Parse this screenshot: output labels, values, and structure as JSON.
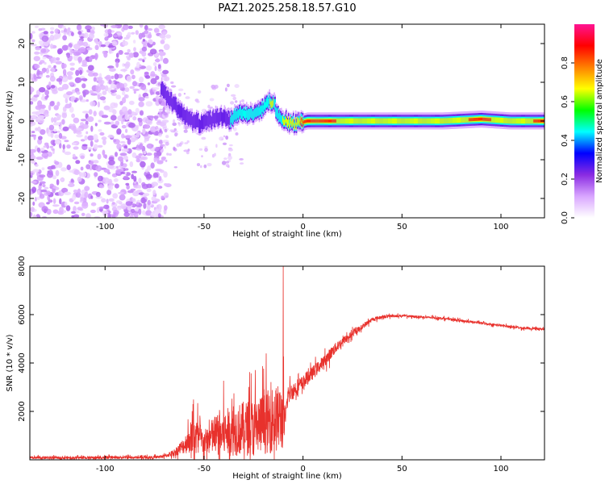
{
  "title": "PAZ1.2025.258.18.57.G10",
  "colors": {
    "snr_line": "#e8312c",
    "axis": "#000000",
    "spectral_scale": [
      "#ffffff",
      "#d9a6ff",
      "#8a2be2",
      "#0000ff",
      "#00ffff",
      "#00ff00",
      "#ffff00",
      "#ff8000",
      "#ff0000",
      "#ff1493"
    ]
  },
  "chart_data": [
    {
      "type": "heatmap",
      "name": "spectrogram",
      "title": "PAZ1.2025.258.18.57.G10",
      "xlabel": "Height of straight line (km)",
      "ylabel": "Frequency (Hz)",
      "xlim": [
        -138,
        122
      ],
      "ylim": [
        -25,
        25
      ],
      "xticks": [
        -100,
        -50,
        0,
        50,
        100
      ],
      "yticks": [
        -20,
        -10,
        0,
        10,
        20
      ],
      "colorbar": {
        "label": "Normalized spectral amplitude",
        "range": [
          0,
          1
        ],
        "ticks": [
          "0.0",
          "0.2",
          "0.4",
          "0.6",
          "0.8"
        ],
        "tick_values": [
          0.0,
          0.2,
          0.4,
          0.6,
          0.8
        ]
      },
      "ridge": {
        "x": [
          -72,
          -67,
          -62,
          -57,
          -52,
          -47,
          -42,
          -37,
          -32,
          -27,
          -22,
          -17,
          -15,
          -12,
          -8,
          -5,
          -2,
          2,
          10,
          30,
          50,
          70,
          90,
          105,
          122
        ],
        "freq": [
          8,
          5,
          2,
          0,
          -1,
          0,
          1,
          0,
          2,
          1.5,
          2,
          5,
          4,
          1,
          -0.5,
          -1,
          -0.5,
          0,
          0,
          0,
          0,
          0,
          0.5,
          0,
          0
        ],
        "amplitude": [
          0.2,
          0.25,
          0.3,
          0.35,
          0.3,
          0.35,
          0.3,
          0.4,
          0.4,
          0.45,
          0.5,
          0.6,
          0.6,
          0.55,
          0.7,
          0.75,
          0.8,
          0.8,
          0.85,
          0.7,
          0.65,
          0.7,
          0.85,
          0.7,
          0.85
        ]
      }
    },
    {
      "type": "line",
      "name": "snr",
      "xlabel": "Height of straight line (km)",
      "ylabel": "SNR (10 * v/v)",
      "xlim": [
        -138,
        122
      ],
      "ylim": [
        0,
        8000
      ],
      "xticks": [
        -100,
        -50,
        0,
        50,
        100
      ],
      "yticks": [
        2000,
        4000,
        6000,
        8000
      ],
      "envelope": {
        "x": [
          -138,
          -75,
          -70,
          -65,
          -60,
          -57,
          -55,
          -53,
          -50,
          -45,
          -40,
          -35,
          -30,
          -25,
          -20,
          -17,
          -15,
          -12,
          -10,
          -9,
          -8,
          -6,
          -3,
          0,
          5,
          10,
          15,
          20,
          25,
          30,
          35,
          40,
          45,
          50,
          60,
          70,
          80,
          90,
          100,
          110,
          122
        ],
        "mean": [
          80,
          100,
          150,
          300,
          600,
          900,
          1100,
          900,
          700,
          1000,
          1100,
          1200,
          1300,
          1350,
          1500,
          1600,
          1700,
          1700,
          1800,
          1400,
          2600,
          2800,
          3000,
          3200,
          3600,
          4000,
          4500,
          4900,
          5200,
          5500,
          5800,
          5900,
          5950,
          5950,
          5900,
          5850,
          5750,
          5650,
          5550,
          5450,
          5400
        ],
        "noise": [
          80,
          80,
          100,
          200,
          500,
          900,
          1300,
          1000,
          700,
          1200,
          1400,
          1500,
          1600,
          1700,
          1800,
          1900,
          2000,
          2000,
          2000,
          600,
          600,
          500,
          500,
          400,
          400,
          350,
          350,
          250,
          200,
          150,
          120,
          100,
          80,
          70,
          70,
          70,
          70,
          70,
          70,
          70,
          70
        ]
      },
      "spike": {
        "x": -10,
        "y": 8000
      }
    }
  ]
}
